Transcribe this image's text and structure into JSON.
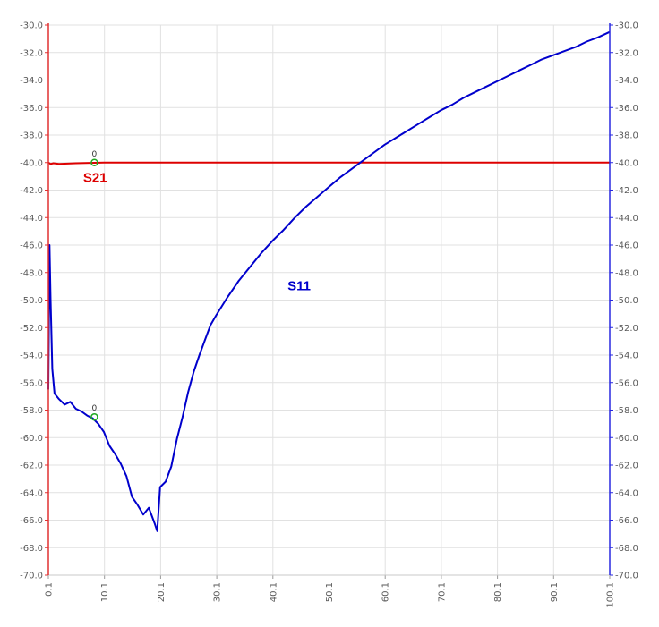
{
  "chart_data": {
    "type": "line",
    "title": "",
    "xlabel": "",
    "ylabel": "",
    "xlim": [
      0.1,
      100.1
    ],
    "ylim": [
      -70,
      -30
    ],
    "x_ticks": [
      0.1,
      10.1,
      20.1,
      30.1,
      40.1,
      50.1,
      60.1,
      70.1,
      80.1,
      90.1,
      100.1
    ],
    "x_tick_labels": [
      "0.1",
      "10.1",
      "20.1",
      "30.1",
      "40.1",
      "50.1",
      "60.1",
      "70.1",
      "80.1",
      "90.1",
      "100.1"
    ],
    "y_ticks": [
      -30,
      -32,
      -34,
      -36,
      -38,
      -40,
      -42,
      -44,
      -46,
      -48,
      -50,
      -52,
      -54,
      -56,
      -58,
      -60,
      -62,
      -64,
      -66,
      -68,
      -70
    ],
    "y_tick_labels": [
      "-30.0",
      "-32.0",
      "-34.0",
      "-36.0",
      "-38.0",
      "-40.0",
      "-42.0",
      "-44.0",
      "-46.0",
      "-48.0",
      "-50.0",
      "-52.0",
      "-54.0",
      "-56.0",
      "-58.0",
      "-60.0",
      "-62.0",
      "-64.0",
      "-66.0",
      "-68.0",
      "-70.0"
    ],
    "grid": true,
    "left_axis_color": "#e03030",
    "right_axis_color": "#2828e0",
    "series": [
      {
        "name": "S21",
        "color": "#dd0000",
        "label_at": {
          "x": 6.3,
          "y": -41.4
        },
        "x": [
          0.1,
          0.5,
          1,
          2,
          5,
          10,
          20,
          30,
          40,
          50,
          60,
          70,
          80,
          90,
          100.1
        ],
        "y": [
          -40.0,
          -40.1,
          -40.05,
          -40.1,
          -40.05,
          -40.0,
          -40.0,
          -40.0,
          -40.0,
          -40.0,
          -40.0,
          -40.0,
          -40.0,
          -40.0,
          -40.0
        ]
      },
      {
        "name": "S11",
        "color": "#0000cc",
        "label_at": {
          "x": 42.7,
          "y": -49.3
        },
        "x": [
          0.1,
          0.3,
          0.5,
          0.8,
          1.2,
          2,
          3,
          4,
          5,
          6,
          7,
          8,
          9,
          10,
          11,
          12,
          13,
          14,
          15,
          16,
          17,
          18,
          19,
          19.5,
          20,
          21,
          22,
          23,
          24,
          25,
          26,
          27,
          28,
          29,
          30,
          32,
          34,
          36,
          38,
          40,
          42,
          44,
          46,
          48,
          50,
          52,
          54,
          56,
          58,
          60,
          62,
          64,
          66,
          68,
          70,
          72,
          74,
          76,
          78,
          80,
          82,
          84,
          86,
          88,
          90,
          92,
          94,
          96,
          98,
          100.1
        ],
        "y": [
          -56.5,
          -46.0,
          -50.0,
          -55.0,
          -56.8,
          -57.2,
          -57.6,
          -57.4,
          -57.9,
          -58.1,
          -58.4,
          -58.6,
          -59.0,
          -59.6,
          -60.6,
          -61.2,
          -61.9,
          -62.8,
          -64.3,
          -64.9,
          -65.6,
          -65.1,
          -66.2,
          -66.8,
          -63.6,
          -63.2,
          -62.1,
          -60.1,
          -58.5,
          -56.7,
          -55.2,
          -54.0,
          -52.9,
          -51.8,
          -51.1,
          -49.8,
          -48.6,
          -47.6,
          -46.6,
          -45.7,
          -44.9,
          -44.0,
          -43.2,
          -42.5,
          -41.8,
          -41.1,
          -40.5,
          -39.9,
          -39.3,
          -38.7,
          -38.2,
          -37.7,
          -37.2,
          -36.7,
          -36.2,
          -35.8,
          -35.3,
          -34.9,
          -34.5,
          -34.1,
          -33.7,
          -33.3,
          -32.9,
          -32.5,
          -32.2,
          -31.9,
          -31.6,
          -31.2,
          -30.9,
          -30.5
        ]
      }
    ],
    "markers": [
      {
        "series": "S21",
        "x": 8.3,
        "y": -40.0,
        "label": "0",
        "color": "#22aa22"
      },
      {
        "series": "S11",
        "x": 8.3,
        "y": -58.5,
        "label": "0",
        "color": "#22aa22"
      }
    ]
  }
}
